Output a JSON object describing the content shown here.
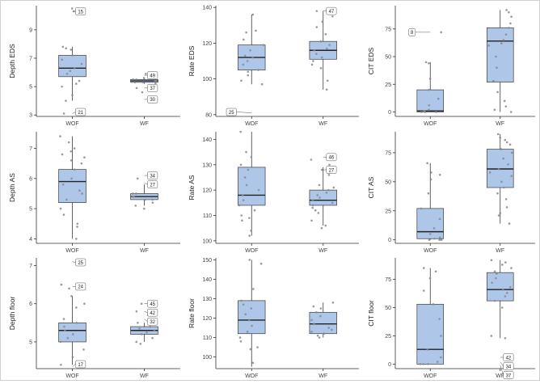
{
  "figure": {
    "background": "#ffffff",
    "box_fill": "#aec7e8",
    "box_stroke": "#3a3a3a",
    "point_color": "#888888"
  },
  "chart_data": [
    {
      "type": "box",
      "title": "",
      "xlabel": "",
      "ylabel": "Depth EDS",
      "categories": [
        "WOF",
        "WF"
      ],
      "ylim": [
        2.9,
        10.7
      ],
      "yticks": [
        3,
        5,
        7,
        9
      ],
      "series": [
        {
          "name": "WOF",
          "q1": 5.7,
          "median": 6.3,
          "q3": 7.2,
          "whisker_low": 4.0,
          "whisker_high": 7.8,
          "points": [
            10.5,
            10.3,
            7.8,
            7.7,
            7.6,
            7.2,
            6.9,
            6.6,
            6.3,
            6.1,
            5.9,
            5.4,
            5.2,
            5.0,
            4.4,
            4.0,
            3.3,
            3.1
          ]
        },
        {
          "name": "WF",
          "q1": 5.3,
          "median": 5.4,
          "q3": 5.5,
          "whisker_low": 5.2,
          "whisker_high": 5.6,
          "points": [
            5.9,
            5.6,
            5.5,
            5.5,
            5.4,
            5.4,
            5.3,
            5.3,
            5.2,
            4.9,
            4.6
          ]
        }
      ],
      "labels": [
        {
          "text": "15",
          "x": "WOF",
          "y": 10.3
        },
        {
          "text": "21",
          "x": "WOF",
          "y": 3.1
        },
        {
          "text": "49",
          "x": "WF",
          "y": 5.8
        },
        {
          "text": "37",
          "x": "WF",
          "y": 4.9
        },
        {
          "text": "30",
          "x": "WF",
          "y": 4.1
        }
      ]
    },
    {
      "type": "box",
      "title": "",
      "xlabel": "",
      "ylabel": "Rate EDS",
      "categories": [
        "WOF",
        "WF"
      ],
      "ylim": [
        79,
        141
      ],
      "yticks": [
        80,
        100,
        120,
        140
      ],
      "series": [
        {
          "name": "WOF",
          "q1": 105,
          "median": 112,
          "q3": 119,
          "whisker_low": 97,
          "whisker_high": 136,
          "points": [
            136,
            127,
            126,
            122,
            119,
            116,
            113,
            112,
            110,
            108,
            105,
            104,
            102,
            99,
            97
          ]
        },
        {
          "name": "WF",
          "q1": 111,
          "median": 116,
          "q3": 121,
          "whisker_low": 94,
          "whisker_high": 138,
          "points": [
            138,
            135,
            132,
            129,
            125,
            121,
            119,
            117,
            116,
            114,
            112,
            110,
            108,
            106,
            99,
            94
          ]
        }
      ],
      "labels": [
        {
          "text": "25",
          "x": "WOF",
          "y": 81
        },
        {
          "text": "47",
          "x": "WF",
          "y": 138
        }
      ]
    },
    {
      "type": "box",
      "title": "",
      "xlabel": "",
      "ylabel": "CIT EDS",
      "categories": [
        "WOF",
        "WF"
      ],
      "ylim": [
        -4,
        96
      ],
      "yticks": [
        0,
        25,
        50,
        75
      ],
      "series": [
        {
          "name": "WOF",
          "q1": 0,
          "median": 1,
          "q3": 20,
          "whisker_low": 0,
          "whisker_high": 45,
          "points": [
            72,
            45,
            44,
            30,
            20,
            12,
            6,
            2,
            1,
            1,
            0,
            0,
            0
          ]
        },
        {
          "name": "WF",
          "q1": 27,
          "median": 64,
          "q3": 76,
          "whisker_low": 0,
          "whisker_high": 92,
          "points": [
            92,
            90,
            86,
            80,
            76,
            70,
            65,
            62,
            60,
            50,
            40,
            28,
            18,
            10,
            5,
            2,
            0
          ]
        }
      ],
      "labels": [
        {
          "text": "8",
          "x": "WOF",
          "y": 72
        }
      ]
    },
    {
      "type": "box",
      "title": "",
      "xlabel": "",
      "ylabel": "Depth AS",
      "categories": [
        "WOF",
        "WF"
      ],
      "ylim": [
        3.85,
        7.55
      ],
      "yticks": [
        4,
        5,
        6,
        7
      ],
      "series": [
        {
          "name": "WOF",
          "q1": 5.2,
          "median": 5.9,
          "q3": 6.3,
          "whisker_low": 4.0,
          "whisker_high": 7.4,
          "points": [
            7.4,
            7.2,
            7.0,
            6.9,
            6.8,
            6.7,
            6.6,
            6.5,
            6.3,
            6.0,
            5.8,
            5.6,
            5.5,
            5.3,
            5.0,
            4.8,
            4.5,
            4.4,
            4.0
          ]
        },
        {
          "name": "WF",
          "q1": 5.3,
          "median": 5.4,
          "q3": 5.5,
          "whisker_low": 5.1,
          "whisker_high": 5.8,
          "points": [
            6.1,
            6.0,
            5.9,
            5.5,
            5.5,
            5.4,
            5.4,
            5.3,
            5.3,
            5.2,
            5.1,
            5.0
          ]
        }
      ],
      "labels": [
        {
          "text": "34",
          "x": "WF",
          "y": 6.1
        },
        {
          "text": "27",
          "x": "WF",
          "y": 5.85
        }
      ]
    },
    {
      "type": "box",
      "title": "",
      "xlabel": "",
      "ylabel": "Rate AS",
      "categories": [
        "WOF",
        "WF"
      ],
      "ylim": [
        99,
        143
      ],
      "yticks": [
        100,
        110,
        120,
        130,
        140
      ],
      "series": [
        {
          "name": "WOF",
          "q1": 114,
          "median": 118,
          "q3": 129,
          "whisker_low": 102,
          "whisker_high": 143,
          "points": [
            143,
            135,
            133,
            130,
            128,
            125,
            122,
            120,
            118,
            116,
            114,
            112,
            110,
            109,
            108,
            104,
            102
          ]
        },
        {
          "name": "WF",
          "q1": 114,
          "median": 116,
          "q3": 120,
          "whisker_low": 106,
          "whisker_high": 129,
          "points": [
            132,
            130,
            128,
            126,
            122,
            121,
            120,
            119,
            118,
            117,
            116,
            115,
            114,
            113,
            112,
            111,
            108,
            106,
            105
          ]
        }
      ],
      "labels": [
        {
          "text": "46",
          "x": "WF",
          "y": 133
        },
        {
          "text": "27",
          "x": "WF",
          "y": 128
        }
      ]
    },
    {
      "type": "box",
      "title": "",
      "xlabel": "",
      "ylabel": "CIT AS",
      "categories": [
        "WOF",
        "WF"
      ],
      "ylim": [
        -3,
        93
      ],
      "yticks": [
        0,
        25,
        50,
        75
      ],
      "series": [
        {
          "name": "WOF",
          "q1": 1,
          "median": 7,
          "q3": 27,
          "whisker_low": 0,
          "whisker_high": 66,
          "points": [
            66,
            58,
            56,
            52,
            40,
            27,
            18,
            10,
            5,
            2,
            1,
            0,
            0,
            0
          ]
        },
        {
          "name": "WF",
          "q1": 45,
          "median": 61,
          "q3": 78,
          "whisker_low": 14,
          "whisker_high": 91,
          "points": [
            91,
            88,
            86,
            84,
            82,
            78,
            75,
            70,
            65,
            61,
            58,
            55,
            50,
            45,
            40,
            35,
            28,
            23,
            21,
            14
          ]
        }
      ],
      "labels": []
    },
    {
      "type": "box",
      "title": "",
      "xlabel": "",
      "ylabel": "Depth floor",
      "categories": [
        "WOF",
        "WF"
      ],
      "ylim": [
        4.3,
        7.2
      ],
      "yticks": [
        5,
        6,
        7
      ],
      "series": [
        {
          "name": "WOF",
          "q1": 5.0,
          "median": 5.3,
          "q3": 5.5,
          "whisker_low": 4.4,
          "whisker_high": 6.2,
          "points": [
            7.1,
            6.5,
            6.4,
            6.2,
            6.0,
            5.9,
            5.6,
            5.5,
            5.4,
            5.3,
            5.2,
            5.1,
            5.0,
            4.8,
            4.6,
            4.4
          ]
        },
        {
          "name": "WF",
          "q1": 5.2,
          "median": 5.3,
          "q3": 5.4,
          "whisker_low": 5.0,
          "whisker_high": 5.5,
          "points": [
            6.0,
            5.8,
            5.7,
            5.5,
            5.4,
            5.35,
            5.3,
            5.25,
            5.2,
            5.1,
            5.0,
            4.95
          ]
        }
      ],
      "labels": [
        {
          "text": "25",
          "x": "WOF",
          "y": 7.1
        },
        {
          "text": "24",
          "x": "WOF",
          "y": 6.45
        },
        {
          "text": "17",
          "x": "WOF",
          "y": 4.35
        },
        {
          "text": "45",
          "x": "WF",
          "y": 6.0
        },
        {
          "text": "42",
          "x": "WF",
          "y": 5.8
        },
        {
          "text": "32",
          "x": "WF",
          "y": 5.6
        }
      ]
    },
    {
      "type": "box",
      "title": "",
      "xlabel": "",
      "ylabel": "Rate floor",
      "categories": [
        "WOF",
        "WF"
      ],
      "ylim": [
        94,
        151
      ],
      "yticks": [
        100,
        110,
        120,
        130,
        140,
        150
      ],
      "series": [
        {
          "name": "WOF",
          "q1": 112,
          "median": 119,
          "q3": 129,
          "whisker_low": 95,
          "whisker_high": 150,
          "points": [
            150,
            148,
            135,
            129,
            127,
            125,
            122,
            119,
            116,
            113,
            110,
            108,
            105,
            104,
            97
          ]
        },
        {
          "name": "WF",
          "q1": 112,
          "median": 117,
          "q3": 123,
          "whisker_low": 110,
          "whisker_high": 128,
          "points": [
            128,
            126,
            125,
            123,
            121,
            119,
            117,
            115,
            114,
            113,
            112,
            111,
            110
          ]
        }
      ],
      "labels": []
    },
    {
      "type": "box",
      "title": "",
      "xlabel": "",
      "ylabel": "CIT floor",
      "categories": [
        "WOF",
        "WF"
      ],
      "ylim": [
        -4,
        94
      ],
      "yticks": [
        0,
        25,
        50,
        75
      ],
      "series": [
        {
          "name": "WOF",
          "q1": 0,
          "median": 13,
          "q3": 53,
          "whisker_low": 0,
          "whisker_high": 85,
          "points": [
            85,
            82,
            76,
            65,
            53,
            40,
            25,
            13,
            6,
            2,
            0,
            0,
            0
          ]
        },
        {
          "name": "WF",
          "q1": 56,
          "median": 66,
          "q3": 81,
          "whisker_low": 23,
          "whisker_high": 92,
          "points": [
            92,
            90,
            88,
            85,
            82,
            80,
            76,
            72,
            68,
            66,
            63,
            60,
            56,
            50,
            25,
            23,
            0
          ]
        }
      ],
      "labels": [
        {
          "text": "42",
          "x": "WF",
          "y": 6
        },
        {
          "text": "34",
          "x": "WF",
          "y": 2
        },
        {
          "text": "37",
          "x": "WF",
          "y": -1
        }
      ]
    }
  ]
}
